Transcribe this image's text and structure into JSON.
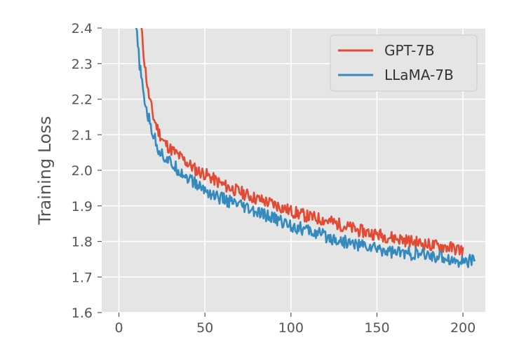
{
  "chart_data": {
    "type": "line",
    "xlabel": "",
    "ylabel": "Training Loss",
    "xlim": [
      -10,
      213
    ],
    "ylim": [
      1.6,
      2.4
    ],
    "xticks": [
      0,
      50,
      100,
      150,
      200
    ],
    "yticks": [
      1.6,
      1.7,
      1.8,
      1.9,
      2.0,
      2.1,
      2.2,
      2.3,
      2.4
    ],
    "xtick_labels": [
      "0",
      "50",
      "100",
      "150",
      "200"
    ],
    "ytick_labels": [
      "1.6",
      "1.7",
      "1.8",
      "1.9",
      "2.0",
      "2.1",
      "2.2",
      "2.3",
      "2.4"
    ],
    "grid": true,
    "legend_position": "top-right",
    "series": [
      {
        "name": "GPT-7B",
        "color": "#E24A33",
        "x": [
          13,
          15,
          17,
          20,
          23,
          26,
          30,
          35,
          40,
          45,
          50,
          55,
          60,
          70,
          80,
          90,
          100,
          110,
          120,
          130,
          140,
          150,
          160,
          170,
          180,
          190,
          195,
          200
        ],
        "y": [
          2.4,
          2.3,
          2.22,
          2.15,
          2.11,
          2.08,
          2.06,
          2.04,
          2.02,
          2.0,
          1.99,
          1.975,
          1.96,
          1.94,
          1.92,
          1.905,
          1.885,
          1.87,
          1.86,
          1.845,
          1.83,
          1.82,
          1.81,
          1.8,
          1.79,
          1.785,
          1.78,
          1.775
        ]
      },
      {
        "name": "LLaMA-7B",
        "color": "#348ABD",
        "x": [
          10,
          12,
          14,
          17,
          20,
          23,
          26,
          30,
          35,
          40,
          45,
          50,
          55,
          60,
          70,
          80,
          90,
          100,
          110,
          120,
          130,
          140,
          150,
          160,
          170,
          180,
          190,
          195,
          200,
          207
        ],
        "y": [
          2.4,
          2.3,
          2.22,
          2.15,
          2.1,
          2.06,
          2.04,
          2.02,
          2.0,
          1.98,
          1.96,
          1.945,
          1.93,
          1.92,
          1.9,
          1.88,
          1.865,
          1.845,
          1.83,
          1.815,
          1.8,
          1.79,
          1.78,
          1.77,
          1.765,
          1.76,
          1.755,
          1.745,
          1.745,
          1.745
        ]
      }
    ]
  }
}
